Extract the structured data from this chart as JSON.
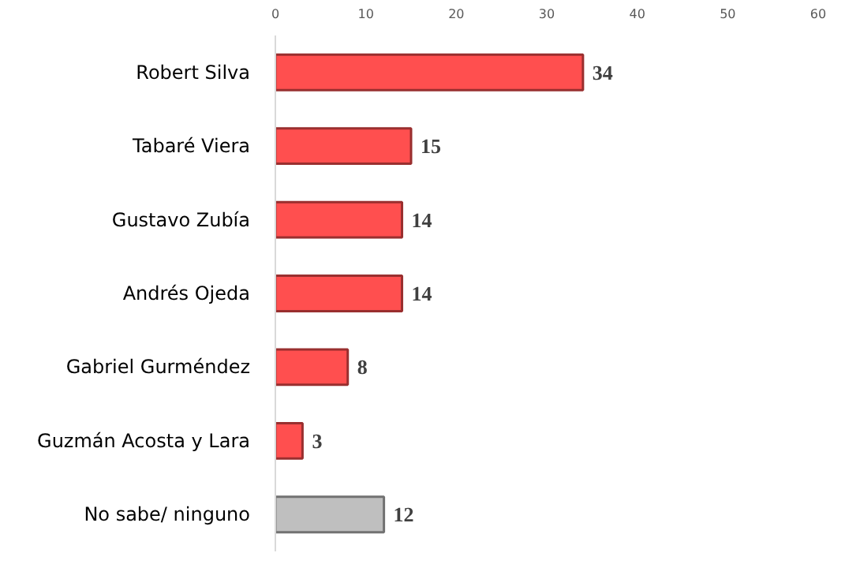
{
  "chart_data": {
    "type": "bar",
    "orientation": "horizontal",
    "categories": [
      "Robert Silva",
      "Tabaré Viera",
      "Gustavo Zubía",
      "Andrés Ojeda",
      "Gabriel Gurméndez",
      "Guzmán Acosta y Lara",
      "No sabe/ ninguno"
    ],
    "values": [
      34,
      15,
      14,
      14,
      8,
      3,
      12
    ],
    "colors": [
      "#ff4f4f",
      "#ff4f4f",
      "#ff4f4f",
      "#ff4f4f",
      "#ff4f4f",
      "#ff4f4f",
      "#bfbfbf"
    ],
    "xlim": [
      0,
      60
    ],
    "xticks": [
      0,
      10,
      20,
      30,
      40,
      50,
      60
    ],
    "data_labels": true,
    "grid": false
  }
}
